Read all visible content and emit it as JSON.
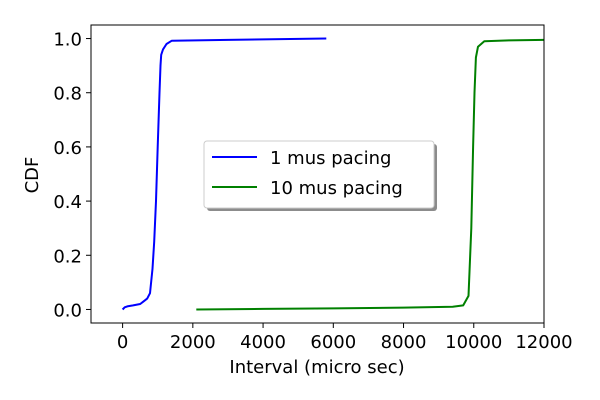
{
  "chart_data": {
    "type": "line",
    "title": "",
    "xlabel": "Interval (micro sec)",
    "ylabel": "CDF",
    "xlim": [
      -900,
      12000
    ],
    "ylim": [
      -0.05,
      1.05
    ],
    "x_ticks": [
      0,
      2000,
      4000,
      6000,
      8000,
      10000,
      12000
    ],
    "x_tick_labels": [
      "0",
      "2000",
      "4000",
      "6000",
      "8000",
      "10000",
      "12000"
    ],
    "y_ticks": [
      0.0,
      0.2,
      0.4,
      0.6,
      0.8,
      1.0
    ],
    "y_tick_labels": [
      "0.0",
      "0.2",
      "0.4",
      "0.6",
      "0.8",
      "1.0"
    ],
    "grid": false,
    "legend_position": "center",
    "series": [
      {
        "name": "1 mus pacing",
        "color": "#0000ff",
        "points": [
          [
            0,
            0.0
          ],
          [
            60,
            0.008
          ],
          [
            150,
            0.012
          ],
          [
            300,
            0.015
          ],
          [
            500,
            0.02
          ],
          [
            600,
            0.03
          ],
          [
            700,
            0.04
          ],
          [
            780,
            0.06
          ],
          [
            850,
            0.15
          ],
          [
            900,
            0.25
          ],
          [
            950,
            0.4
          ],
          [
            1000,
            0.6
          ],
          [
            1050,
            0.8
          ],
          [
            1080,
            0.9
          ],
          [
            1100,
            0.94
          ],
          [
            1150,
            0.96
          ],
          [
            1250,
            0.98
          ],
          [
            1400,
            0.992
          ],
          [
            3000,
            0.995
          ],
          [
            5800,
            1.0
          ]
        ]
      },
      {
        "name": "10 mus pacing",
        "color": "#008000",
        "points": [
          [
            2100,
            0.0
          ],
          [
            4000,
            0.002
          ],
          [
            6000,
            0.004
          ],
          [
            8000,
            0.007
          ],
          [
            9400,
            0.01
          ],
          [
            9700,
            0.015
          ],
          [
            9850,
            0.05
          ],
          [
            9930,
            0.3
          ],
          [
            9980,
            0.6
          ],
          [
            10020,
            0.8
          ],
          [
            10060,
            0.93
          ],
          [
            10120,
            0.97
          ],
          [
            10300,
            0.99
          ],
          [
            11000,
            0.993
          ],
          [
            12000,
            0.995
          ]
        ]
      }
    ]
  }
}
